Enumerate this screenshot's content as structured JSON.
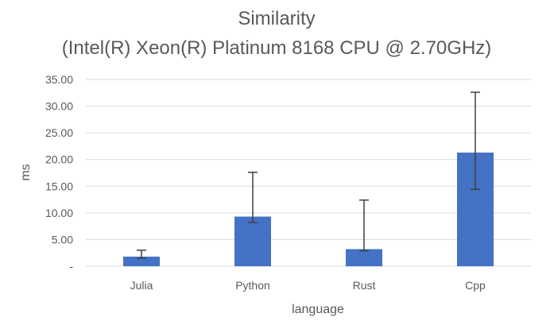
{
  "chart_data": {
    "type": "bar",
    "title": "Similarity",
    "subtitle": "(Intel(R) Xeon(R) Platinum 8168 CPU @ 2.70GHz)",
    "xlabel": "language",
    "ylabel": "ms",
    "categories": [
      "Julia",
      "Python",
      "Rust",
      "Cpp"
    ],
    "values": [
      1.8,
      9.3,
      3.2,
      21.3
    ],
    "error_low": [
      1.5,
      8.2,
      2.9,
      14.4
    ],
    "error_high": [
      3.0,
      17.6,
      12.4,
      32.6
    ],
    "ylim": [
      0,
      35
    ],
    "yticks": [
      0,
      5,
      10,
      15,
      20,
      25,
      30,
      35
    ],
    "ytick_labels": [
      "-",
      "5.00",
      "10.00",
      "15.00",
      "20.00",
      "25.00",
      "30.00",
      "35.00"
    ],
    "grid": true,
    "bar_color": "#4472C4",
    "grid_color": "#D9D9D9",
    "error_bar_color": "#404040"
  }
}
